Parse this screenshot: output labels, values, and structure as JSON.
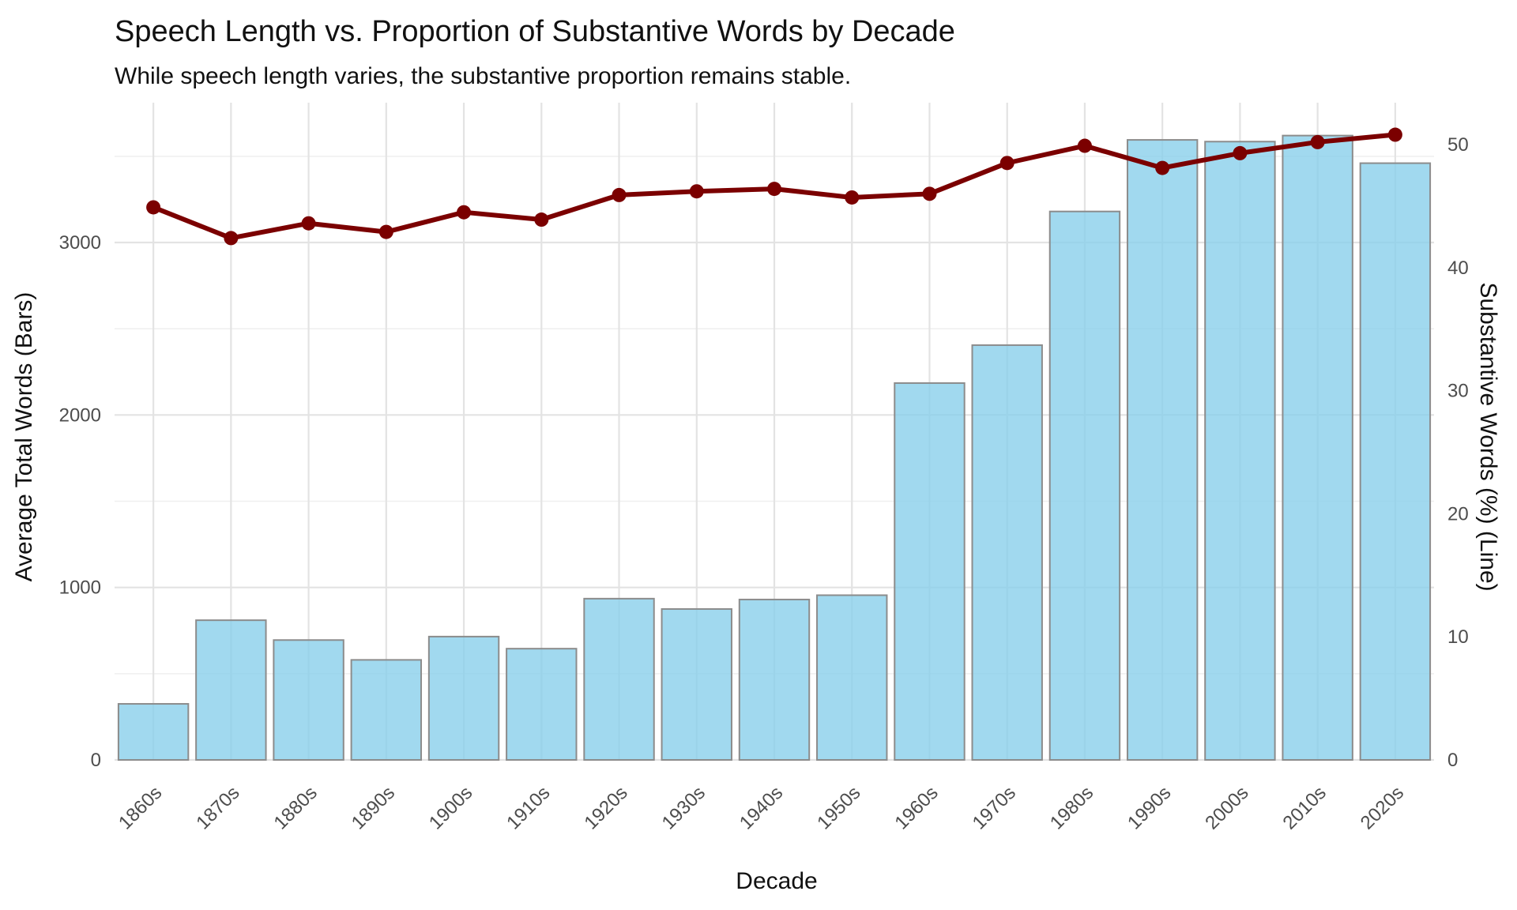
{
  "chart_data": {
    "type": "bar+line",
    "title": "Speech Length vs. Proportion of Substantive Words by Decade",
    "subtitle": "While speech length varies, the substantive proportion remains stable.",
    "xlabel": "Decade",
    "ylabel_left": "Average Total Words (Bars)",
    "ylabel_right": "Substantive Words (%) (Line)",
    "categories": [
      "1860s",
      "1870s",
      "1880s",
      "1890s",
      "1900s",
      "1910s",
      "1920s",
      "1930s",
      "1940s",
      "1950s",
      "1960s",
      "1970s",
      "1980s",
      "1990s",
      "2000s",
      "2010s",
      "2020s"
    ],
    "bars": {
      "values": [
        325,
        810,
        695,
        580,
        715,
        645,
        935,
        875,
        930,
        955,
        2185,
        2405,
        3180,
        3595,
        3585,
        3620,
        3460
      ],
      "ylim": [
        0,
        3600
      ],
      "ticks": [
        0,
        1000,
        2000,
        3000
      ],
      "fill": "#87CEEB",
      "stroke": "#8c8c8c"
    },
    "line": {
      "values": [
        44.9,
        42.4,
        43.6,
        42.9,
        44.5,
        43.9,
        45.9,
        46.2,
        46.4,
        45.7,
        46.0,
        48.5,
        49.9,
        48.1,
        49.3,
        50.2,
        50.8
      ],
      "ylim": [
        0,
        50
      ],
      "ticks": [
        0,
        10,
        20,
        30,
        40,
        50
      ],
      "color": "#7B0000"
    },
    "grid": true,
    "legend": "none"
  }
}
